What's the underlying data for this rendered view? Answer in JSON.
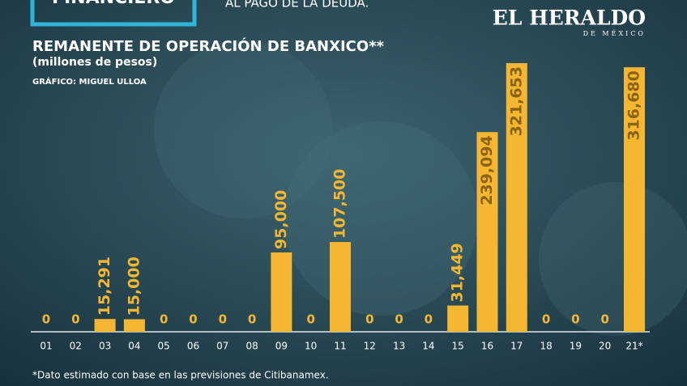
{
  "header": {
    "section": "FINANCIERO",
    "headline_tail": "AL PAGO DE LA DEUDA.",
    "logo": "EL HERALDO",
    "logo_sub": "DE MÉXICO"
  },
  "chart_data": {
    "type": "bar",
    "title": "REMANENTE DE OPERACIÓN DE BANXICO**",
    "subtitle": "(millones de pesos)",
    "credit": "GRÁFICO: MIGUEL ULLOA",
    "footnote": "*Dato estimado con base en las previsiones de Citibanamex.",
    "categories": [
      "01",
      "02",
      "03",
      "04",
      "05",
      "06",
      "07",
      "08",
      "09",
      "10",
      "11",
      "12",
      "13",
      "14",
      "15",
      "16",
      "17",
      "18",
      "19",
      "20",
      "21*"
    ],
    "values": [
      0,
      0,
      15291,
      15000,
      0,
      0,
      0,
      0,
      95000,
      0,
      107500,
      0,
      0,
      0,
      31449,
      239094,
      321653,
      0,
      0,
      0,
      316680
    ],
    "value_labels": [
      "0",
      "0",
      "15,291",
      "15,000",
      "0",
      "0",
      "0",
      "0",
      "95,000",
      "0",
      "107,500",
      "0",
      "0",
      "0",
      "31,449",
      "239,094",
      "321,653",
      "0",
      "0",
      "0",
      "316,680"
    ],
    "color": "#f5b731"
  }
}
